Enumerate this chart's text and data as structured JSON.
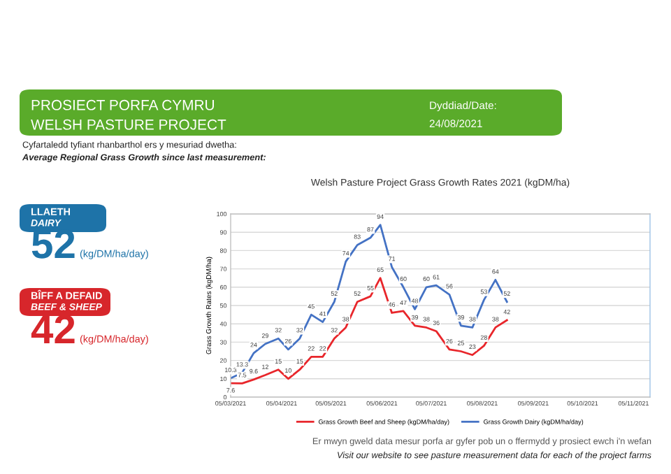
{
  "chart_data": {
    "type": "line",
    "title": "Welsh Pasture Project Grass Growth Rates 2021 (kgDM/ha)",
    "ylabel": "Grass Growth Rates (kgDM/ha)",
    "x": [
      "2021-03-05",
      "2021-03-12",
      "2021-03-19",
      "2021-03-26",
      "2021-04-03",
      "2021-04-09",
      "2021-04-16",
      "2021-04-23",
      "2021-04-30",
      "2021-05-07",
      "2021-05-14",
      "2021-05-21",
      "2021-05-29",
      "2021-06-04",
      "2021-06-11",
      "2021-06-18",
      "2021-06-25",
      "2021-07-02",
      "2021-07-08",
      "2021-07-16",
      "2021-07-23",
      "2021-07-30",
      "2021-08-06",
      "2021-08-13",
      "2021-08-20"
    ],
    "series": [
      {
        "name": "Grass Growth Beef and Sheep (kgDM/ha/day)",
        "color": "#e8262b",
        "values": [
          7.6,
          7.5,
          9.6,
          12,
          15,
          10,
          15,
          22,
          22,
          32,
          38,
          52,
          55,
          65,
          46,
          47,
          39,
          38,
          36,
          26,
          25,
          23,
          28,
          38,
          42
        ]
      },
      {
        "name": "Grass Growth Dairy (kgDM/ha/day)",
        "color": "#4472c4",
        "values": [
          10.3,
          13.3,
          24,
          29,
          32,
          26,
          32,
          45,
          41,
          52,
          74,
          83,
          87,
          94,
          71,
          60,
          48,
          60,
          61,
          56,
          39,
          38,
          53,
          64,
          52
        ]
      }
    ],
    "xlim": [
      "2021-03-05",
      "2021-11-15"
    ],
    "xticks": [
      {
        "value": "2021-03-05",
        "label": "05/03/2021"
      },
      {
        "value": "2021-04-05",
        "label": "05/04/2021"
      },
      {
        "value": "2021-05-05",
        "label": "05/05/2021"
      },
      {
        "value": "2021-06-05",
        "label": "05/06/2021"
      },
      {
        "value": "2021-07-05",
        "label": "05/07/2021"
      },
      {
        "value": "2021-08-05",
        "label": "05/08/2021"
      },
      {
        "value": "2021-09-05",
        "label": "05/09/2021"
      },
      {
        "value": "2021-10-05",
        "label": "05/10/2021"
      },
      {
        "value": "2021-11-05",
        "label": "05/11/2021"
      }
    ],
    "ylim": [
      0,
      100
    ],
    "yticks": [
      0,
      10,
      20,
      30,
      40,
      50,
      60,
      70,
      80,
      90,
      100
    ],
    "grid": "y",
    "legend": "bottom",
    "data_labels": true,
    "marker": "none",
    "line_style": "solid",
    "annotations": [
      "PROSIECT PORFA CYMRU",
      "WELSH PASTURE PROJECT",
      "Dyddiad/Date:",
      "24/08/2021",
      "Cyfartaledd tyfiant rhanbarthol ers y mesuriad dwetha:",
      "Average Regional Grass Growth since last measurement:",
      "LLAETH",
      "DAIRY",
      "52",
      "(kg/DM/ha/day)",
      "BÎFF A DEFAID",
      "BEEF & SHEEP",
      "42",
      "(kg/DM/ha/day)",
      "Er mwyn gweld data mesur porfa ar gyfer pob un o ffermydd y prosiect ewch i'n wefan",
      "Visit our website to see pasture measurement data for each of the project farms"
    ]
  }
}
